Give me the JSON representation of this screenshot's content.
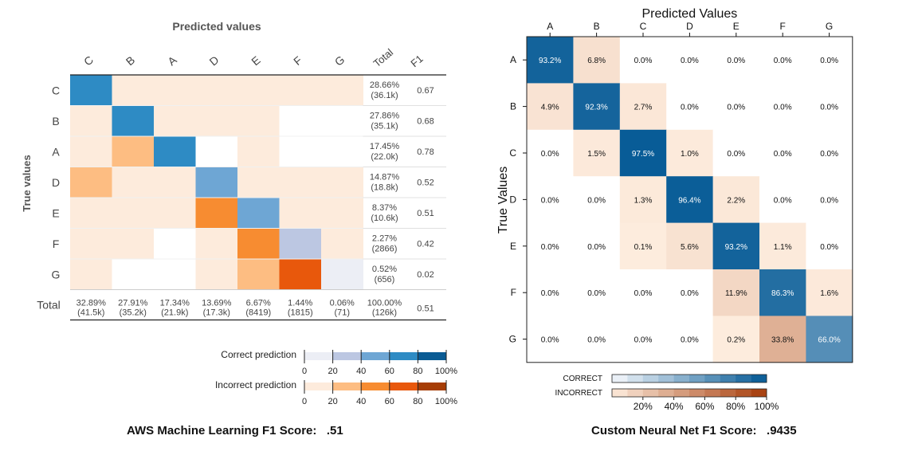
{
  "chart_data": [
    {
      "type": "heatmap",
      "title": "Predicted values",
      "ylabel": "True values",
      "rows": [
        "C",
        "B",
        "A",
        "D",
        "E",
        "F",
        "G"
      ],
      "cols": [
        "C",
        "B",
        "A",
        "D",
        "E",
        "F",
        "G"
      ],
      "total_header": "Total",
      "f1_header": "F1",
      "row_totals_pct": [
        "28.66%",
        "27.86%",
        "17.45%",
        "14.87%",
        "8.37%",
        "2.27%",
        "0.52%"
      ],
      "row_totals_count": [
        "(36.1k)",
        "(35.1k)",
        "(22.0k)",
        "(18.8k)",
        "(10.6k)",
        "(2866)",
        "(656)"
      ],
      "row_f1": [
        "0.67",
        "0.68",
        "0.78",
        "0.52",
        "0.51",
        "0.42",
        "0.02"
      ],
      "total_row_label": "Total",
      "col_totals_pct": [
        "32.89%",
        "27.91%",
        "17.34%",
        "13.69%",
        "6.67%",
        "1.44%",
        "0.06%"
      ],
      "col_totals_count": [
        "(41.5k)",
        "(35.2k)",
        "(21.9k)",
        "(17.3k)",
        "(8419)",
        "(1815)",
        "(71)"
      ],
      "grand_total_pct": "100.00%",
      "grand_total_count": "(126k)",
      "grand_f1": "0.51",
      "cell_levels": [
        [
          4,
          1,
          1,
          1,
          1,
          1,
          1
        ],
        [
          1,
          4,
          1,
          1,
          1,
          0,
          0
        ],
        [
          1,
          2,
          4,
          0,
          1,
          0,
          0
        ],
        [
          2,
          1,
          1,
          3,
          1,
          1,
          1
        ],
        [
          1,
          1,
          1,
          3,
          3,
          1,
          1
        ],
        [
          1,
          1,
          0,
          1,
          3,
          2,
          1
        ],
        [
          1,
          0,
          0,
          1,
          2,
          4,
          1
        ]
      ],
      "legend": {
        "correct_label": "Correct prediction",
        "incorrect_label": "Incorrect prediction",
        "ticks": [
          "0",
          "20",
          "40",
          "60",
          "80",
          "100%"
        ],
        "correct_colors": [
          "#eceef5",
          "#bcc7e2",
          "#6ea6d4",
          "#2e8bc4",
          "#0a5b94"
        ],
        "incorrect_colors": [
          "#fdebdc",
          "#fdbd82",
          "#f78c31",
          "#e8580c",
          "#a63d05"
        ]
      },
      "caption": "AWS Machine Learning F1 Score:   .51"
    },
    {
      "type": "heatmap",
      "title": "Predicted Values",
      "ylabel": "True Values",
      "labels": [
        "A",
        "B",
        "C",
        "D",
        "E",
        "F",
        "G"
      ],
      "values": [
        [
          93.2,
          6.8,
          0.0,
          0.0,
          0.0,
          0.0,
          0.0
        ],
        [
          4.9,
          92.3,
          2.7,
          0.0,
          0.0,
          0.0,
          0.0
        ],
        [
          0.0,
          1.5,
          97.5,
          1.0,
          0.0,
          0.0,
          0.0
        ],
        [
          0.0,
          0.0,
          1.3,
          96.4,
          2.2,
          0.0,
          0.0
        ],
        [
          0.0,
          0.0,
          0.1,
          5.6,
          93.2,
          1.1,
          0.0
        ],
        [
          0.0,
          0.0,
          0.0,
          0.0,
          11.9,
          86.3,
          1.6
        ],
        [
          0.0,
          0.0,
          0.0,
          0.0,
          0.2,
          33.8,
          66.0
        ]
      ],
      "value_suffix": "%",
      "legend": {
        "correct_label": "CORRECT",
        "incorrect_label": "INCORRECT",
        "ticks": [
          "20%",
          "40%",
          "60%",
          "80%",
          "100%"
        ]
      },
      "caption": "Custom Neural Net F1 Score:   .9435"
    }
  ]
}
